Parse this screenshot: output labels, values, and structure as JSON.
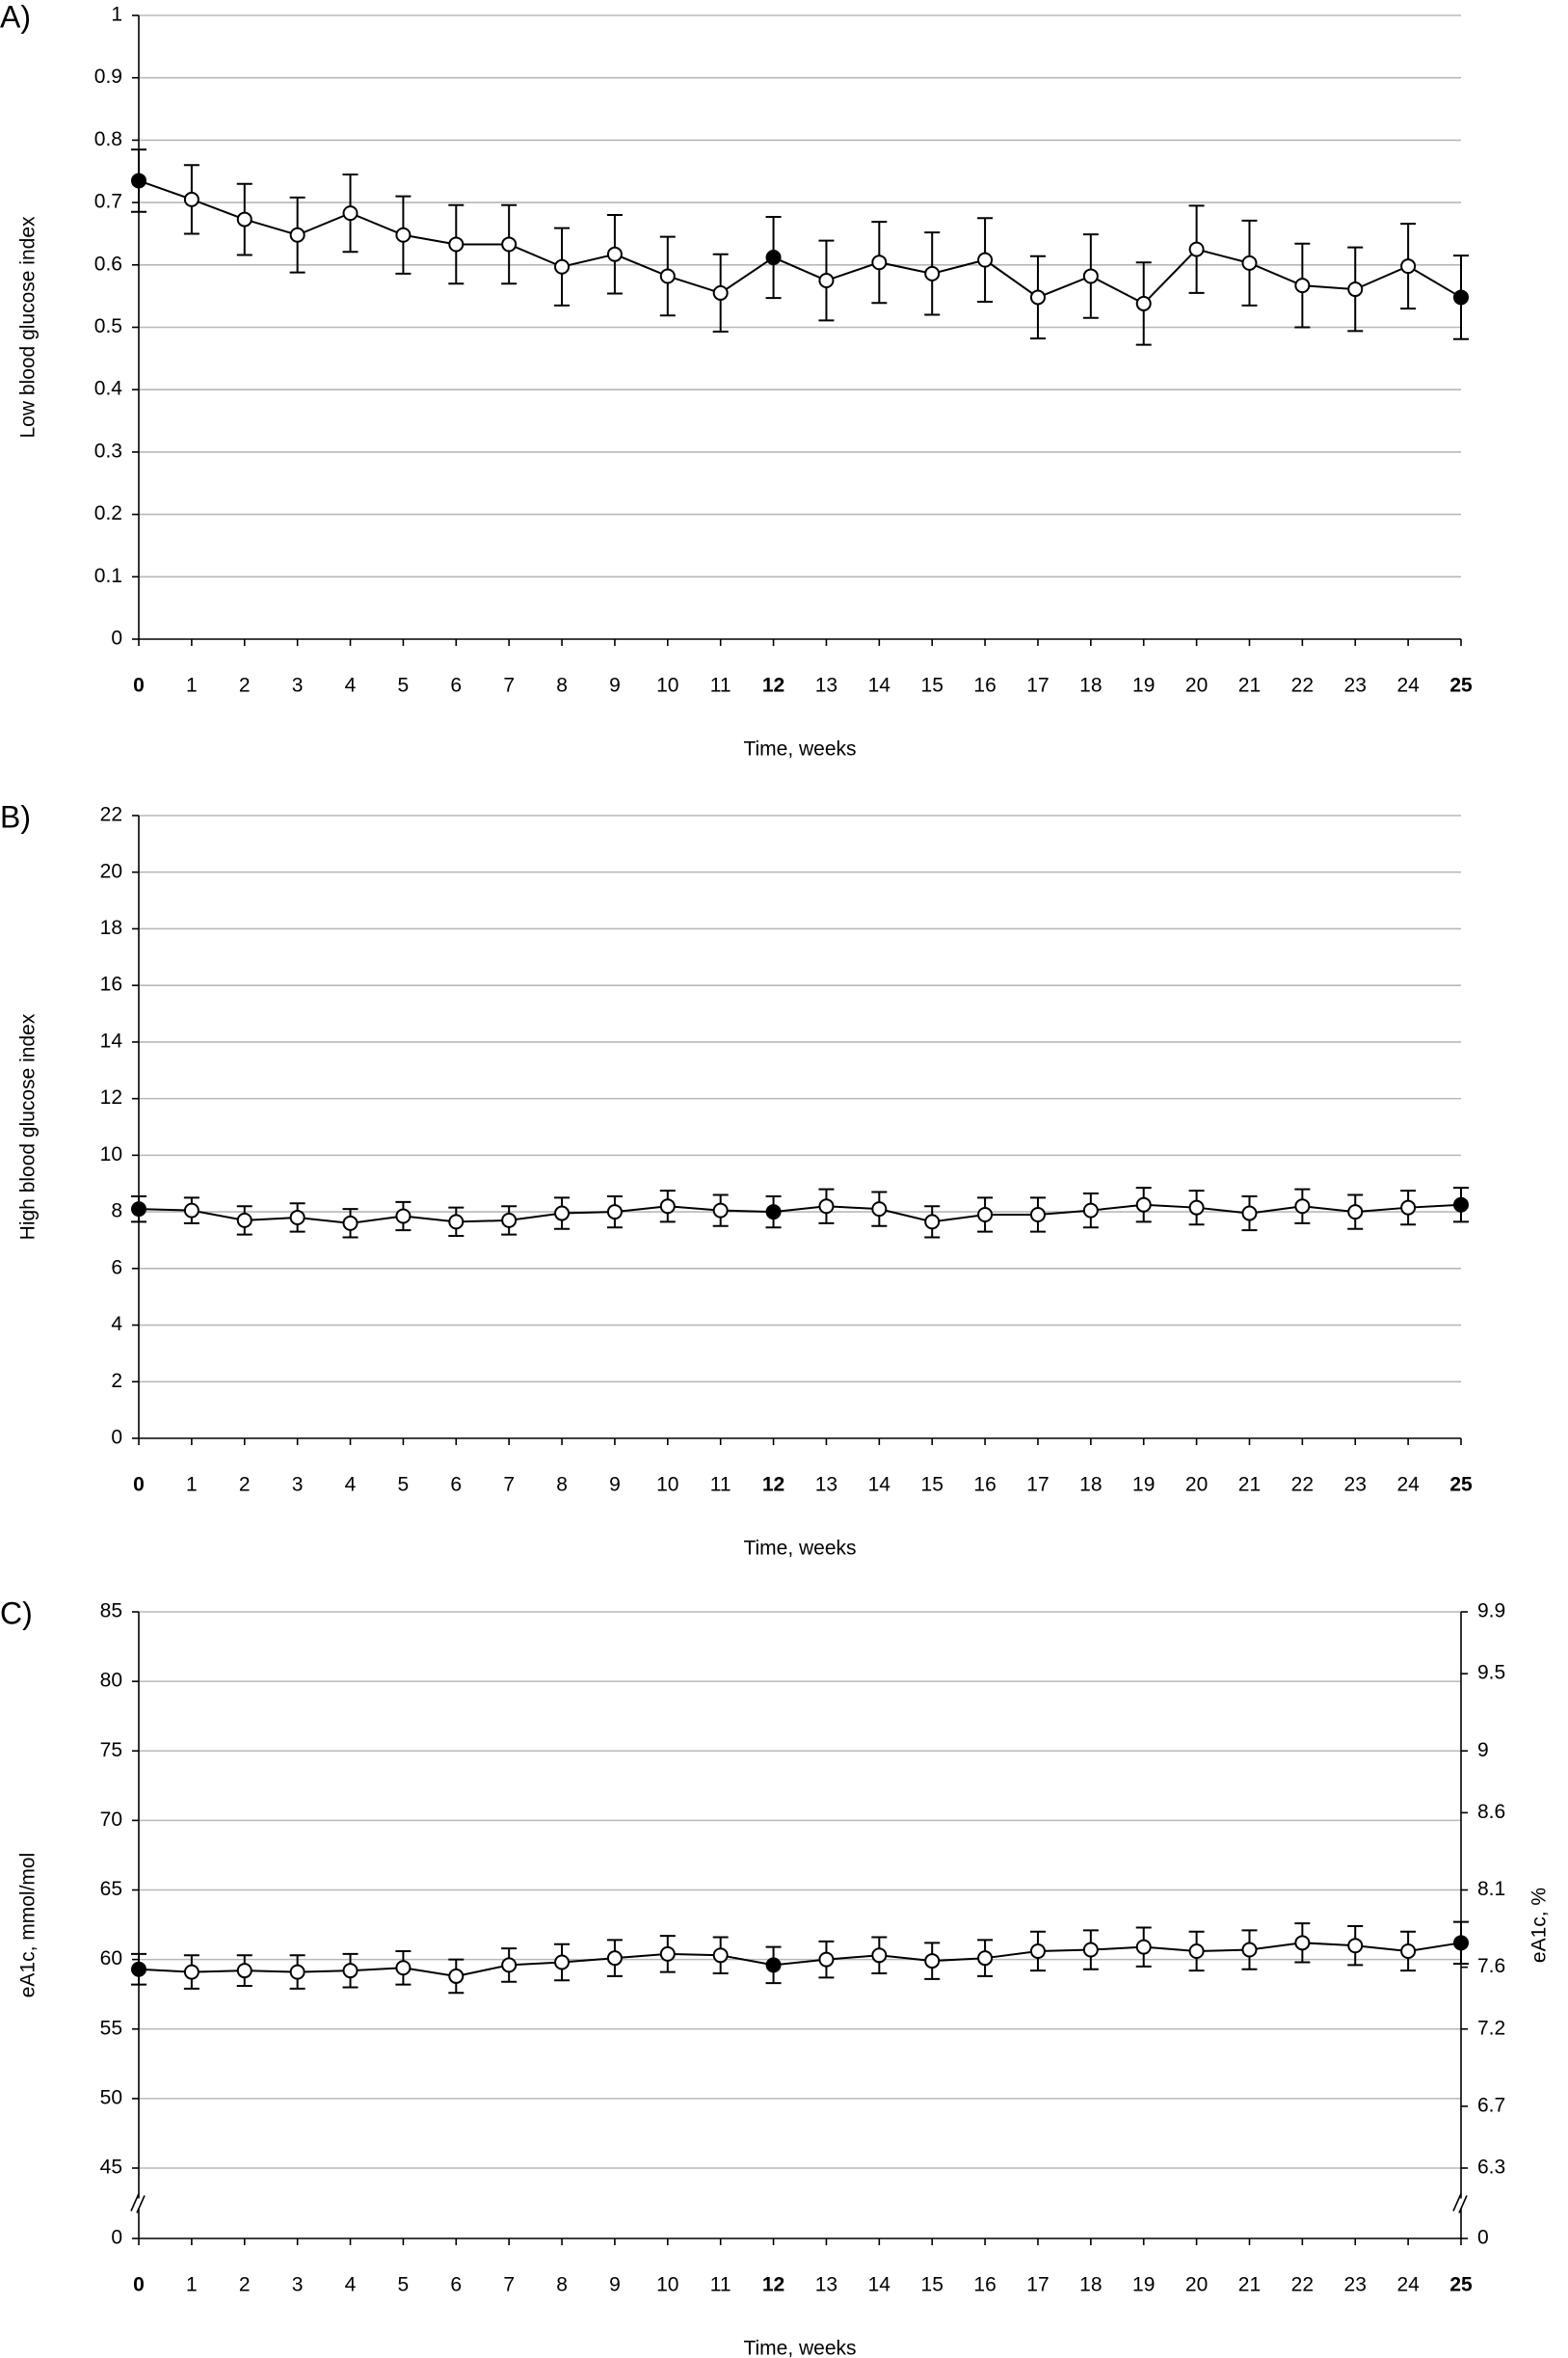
{
  "chart_data": [
    {
      "type": "line",
      "panel_label": "A)",
      "ylabel": "Low blood glucose index",
      "xlabel": "Time, weeks",
      "x": [
        0,
        1,
        2,
        3,
        4,
        5,
        6,
        7,
        8,
        9,
        10,
        11,
        12,
        13,
        14,
        15,
        16,
        17,
        18,
        19,
        20,
        21,
        22,
        23,
        24,
        25
      ],
      "xlim": [
        0,
        25
      ],
      "xticks": [
        0,
        1,
        2,
        3,
        4,
        5,
        6,
        7,
        8,
        9,
        10,
        11,
        12,
        13,
        14,
        15,
        16,
        17,
        18,
        19,
        20,
        21,
        22,
        23,
        24,
        25
      ],
      "highlight_x": [
        0,
        12,
        25
      ],
      "ylim": [
        0,
        1
      ],
      "yticks": [
        0,
        0.1,
        0.2,
        0.3,
        0.4,
        0.5,
        0.6,
        0.7,
        0.8,
        0.9,
        1
      ],
      "grid": true,
      "series": [
        {
          "color": "#000000",
          "values": [
            0.735,
            0.705,
            0.673,
            0.648,
            0.683,
            0.648,
            0.633,
            0.633,
            0.597,
            0.617,
            0.582,
            0.555,
            0.612,
            0.575,
            0.604,
            0.586,
            0.608,
            0.548,
            0.582,
            0.538,
            0.625,
            0.603,
            0.567,
            0.561,
            0.598,
            0.548
          ],
          "errors": [
            0.05,
            0.055,
            0.057,
            0.06,
            0.062,
            0.062,
            0.063,
            0.063,
            0.062,
            0.063,
            0.063,
            0.062,
            0.065,
            0.064,
            0.065,
            0.066,
            0.067,
            0.066,
            0.067,
            0.066,
            0.07,
            0.068,
            0.067,
            0.067,
            0.068,
            0.067
          ]
        }
      ]
    },
    {
      "type": "line",
      "panel_label": "B)",
      "ylabel": "High blood glucose index",
      "xlabel": "Time, weeks",
      "x": [
        0,
        1,
        2,
        3,
        4,
        5,
        6,
        7,
        8,
        9,
        10,
        11,
        12,
        13,
        14,
        15,
        16,
        17,
        18,
        19,
        20,
        21,
        22,
        23,
        24,
        25
      ],
      "xlim": [
        0,
        25
      ],
      "xticks": [
        0,
        1,
        2,
        3,
        4,
        5,
        6,
        7,
        8,
        9,
        10,
        11,
        12,
        13,
        14,
        15,
        16,
        17,
        18,
        19,
        20,
        21,
        22,
        23,
        24,
        25
      ],
      "highlight_x": [
        0,
        12,
        25
      ],
      "ylim": [
        0,
        22
      ],
      "yticks": [
        0,
        2,
        4,
        6,
        8,
        10,
        12,
        14,
        16,
        18,
        20,
        22
      ],
      "grid": true,
      "series": [
        {
          "color": "#000000",
          "values": [
            8.1,
            8.05,
            7.7,
            7.8,
            7.6,
            7.85,
            7.65,
            7.7,
            7.95,
            8.0,
            8.2,
            8.05,
            8.0,
            8.2,
            8.1,
            7.65,
            7.9,
            7.9,
            8.05,
            8.25,
            8.15,
            7.95,
            8.2,
            8.0,
            8.15,
            8.25
          ],
          "errors": [
            0.45,
            0.45,
            0.5,
            0.5,
            0.5,
            0.5,
            0.5,
            0.5,
            0.55,
            0.55,
            0.55,
            0.55,
            0.55,
            0.6,
            0.6,
            0.55,
            0.6,
            0.6,
            0.6,
            0.6,
            0.6,
            0.6,
            0.6,
            0.6,
            0.6,
            0.6
          ]
        }
      ]
    },
    {
      "type": "line",
      "panel_label": "C)",
      "ylabel": "eA1c, mmol/mol",
      "y2label": "eA1c, %",
      "xlabel": "Time, weeks",
      "x": [
        0,
        1,
        2,
        3,
        4,
        5,
        6,
        7,
        8,
        9,
        10,
        11,
        12,
        13,
        14,
        15,
        16,
        17,
        18,
        19,
        20,
        21,
        22,
        23,
        24,
        25
      ],
      "xlim": [
        0,
        25
      ],
      "xticks": [
        0,
        1,
        2,
        3,
        4,
        5,
        6,
        7,
        8,
        9,
        10,
        11,
        12,
        13,
        14,
        15,
        16,
        17,
        18,
        19,
        20,
        21,
        22,
        23,
        24,
        25
      ],
      "highlight_x": [
        0,
        12,
        25
      ],
      "ylim": [
        0,
        85
      ],
      "axis_break": [
        0,
        45
      ],
      "yticks": [
        0,
        45,
        50,
        55,
        60,
        65,
        70,
        75,
        80,
        85
      ],
      "grid": true,
      "y2lim": [
        0,
        9.9
      ],
      "y2_axis_break": [
        0,
        6.3
      ],
      "y2ticks": [
        0,
        6.3,
        6.7,
        7.2,
        7.6,
        8.1,
        8.6,
        9,
        9.5,
        9.9
      ],
      "series": [
        {
          "color": "#000000",
          "values": [
            59.3,
            59.1,
            59.2,
            59.1,
            59.2,
            59.4,
            58.8,
            59.6,
            59.8,
            60.1,
            60.4,
            60.3,
            59.6,
            60.0,
            60.3,
            59.9,
            60.1,
            60.6,
            60.7,
            60.9,
            60.6,
            60.7,
            61.2,
            61.0,
            60.6,
            61.2
          ],
          "errors": [
            1.1,
            1.2,
            1.1,
            1.2,
            1.2,
            1.2,
            1.2,
            1.2,
            1.3,
            1.3,
            1.3,
            1.3,
            1.3,
            1.3,
            1.3,
            1.3,
            1.3,
            1.4,
            1.4,
            1.4,
            1.4,
            1.4,
            1.4,
            1.4,
            1.4,
            1.5
          ]
        }
      ]
    }
  ]
}
